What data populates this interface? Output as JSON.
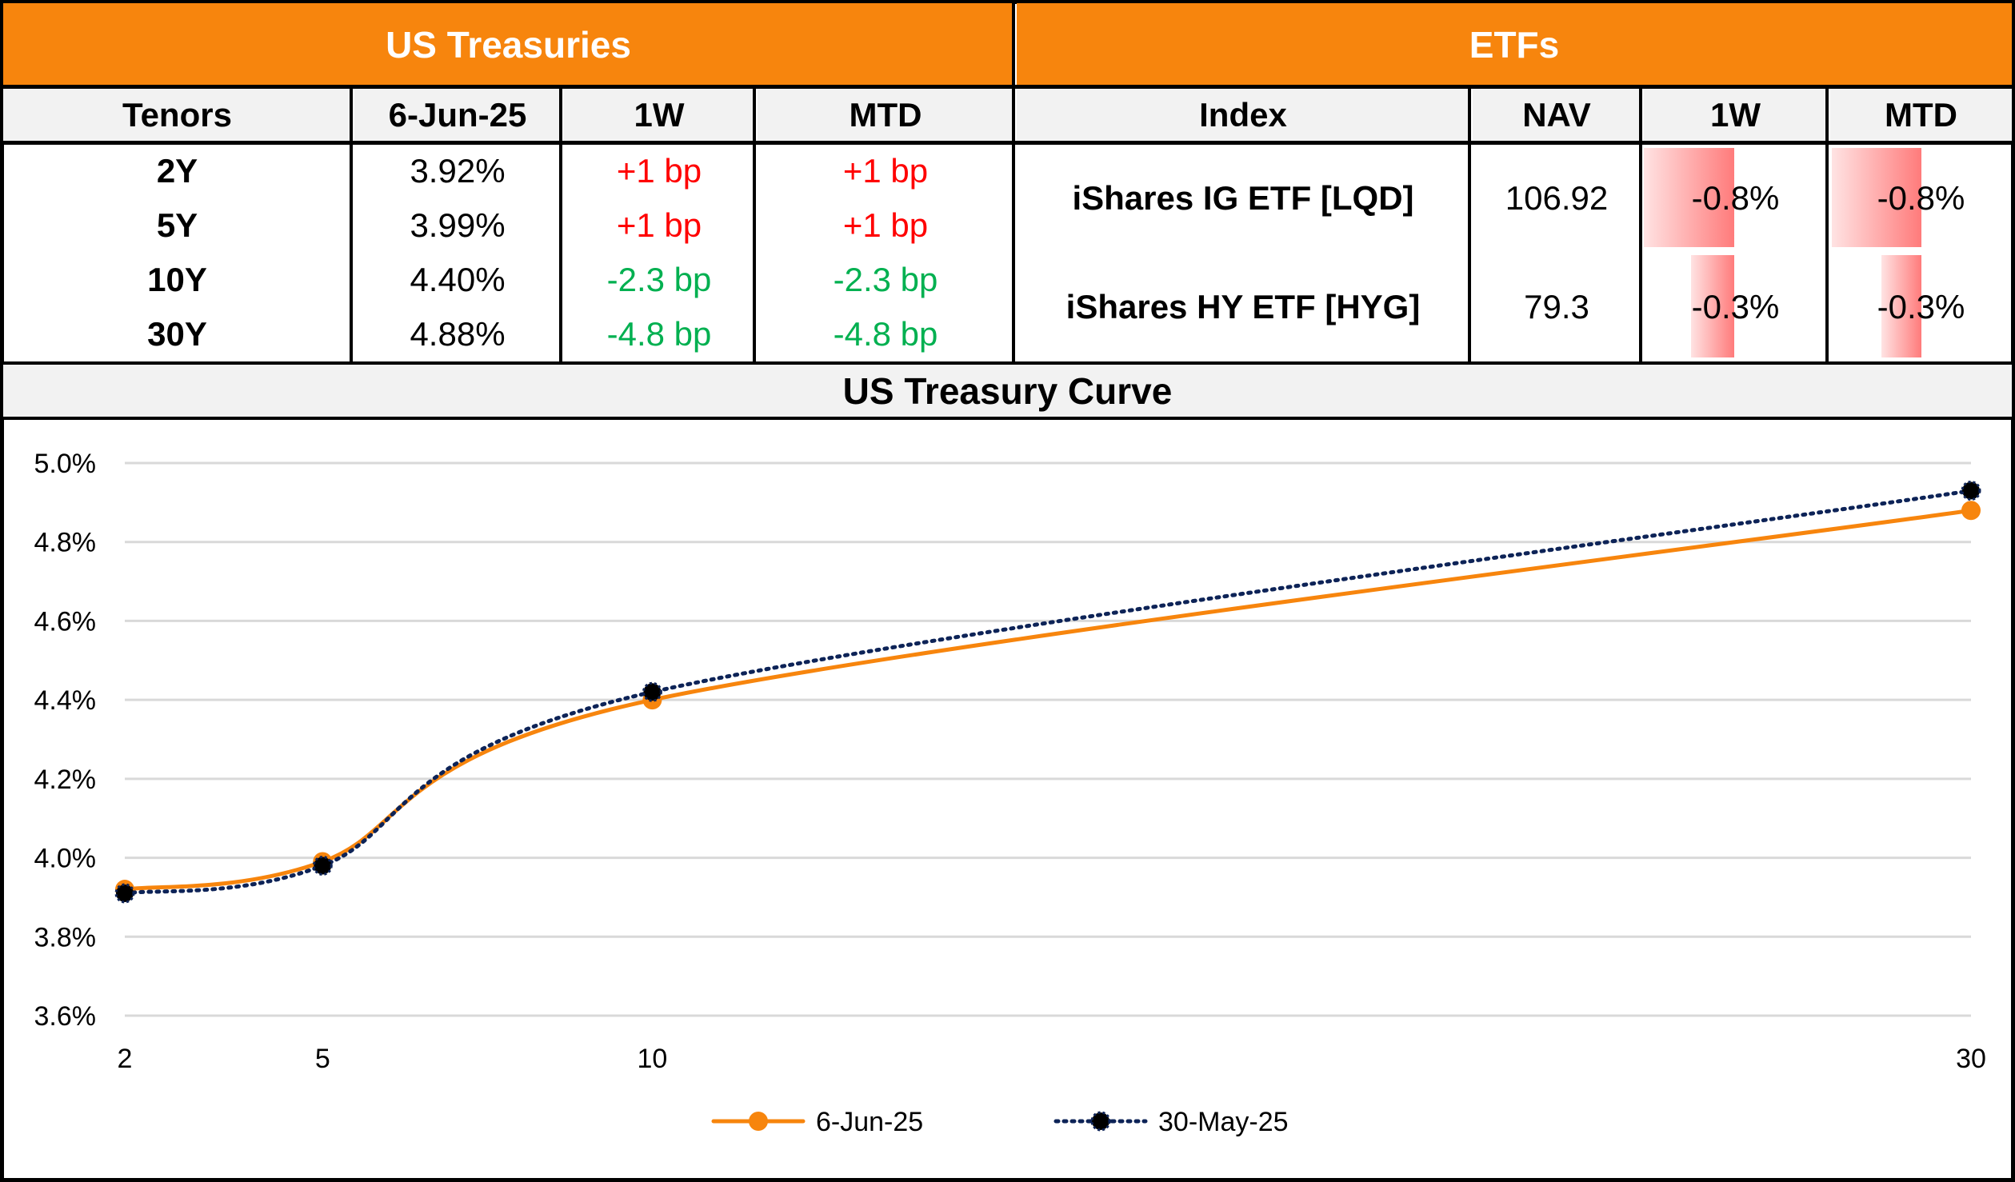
{
  "treasuries": {
    "title": "US Treasuries",
    "columns": [
      "Tenors",
      "6-Jun-25",
      "1W",
      "MTD"
    ],
    "rows": [
      {
        "tenor": "2Y",
        "yield": "3.92%",
        "w1": "+1 bp",
        "mtd": "+1 bp",
        "direction": "up"
      },
      {
        "tenor": "5Y",
        "yield": "3.99%",
        "w1": "+1 bp",
        "mtd": "+1 bp",
        "direction": "up"
      },
      {
        "tenor": "10Y",
        "yield": "4.40%",
        "w1": "-2.3 bp",
        "mtd": "-2.3 bp",
        "direction": "down"
      },
      {
        "tenor": "30Y",
        "yield": "4.88%",
        "w1": "-4.8 bp",
        "mtd": "-4.8 bp",
        "direction": "down"
      }
    ]
  },
  "etfs": {
    "title": "ETFs",
    "columns": [
      "Index",
      "NAV",
      "1W",
      "MTD"
    ],
    "rows": [
      {
        "index": "iShares IG ETF [LQD]",
        "nav": "106.92",
        "w1": "-0.8%",
        "mtd": "-0.8%",
        "w1_value": -0.8,
        "mtd_value": -0.8
      },
      {
        "index": "iShares HY ETF [HYG]",
        "nav": "79.3",
        "w1": "-0.3%",
        "mtd": "-0.3%",
        "w1_value": -0.3,
        "mtd_value": -0.3
      }
    ]
  },
  "colors": {
    "header_band": "#F7850D",
    "header_row": "#F2F2F2",
    "positive_change": "#FF0000",
    "negative_change": "#00B050",
    "series_current": "#F7850D",
    "series_previous": "#0D2357",
    "gridline": "#D9D9D9"
  },
  "chart_data": {
    "type": "line",
    "title": "US Treasury Curve",
    "xlabel": "",
    "ylabel": "",
    "x": [
      2,
      5,
      10,
      30
    ],
    "x_ticks": [
      "2",
      "5",
      "10",
      "30"
    ],
    "xlim": [
      2,
      30
    ],
    "ylim": [
      3.6,
      5.0
    ],
    "y_ticks": [
      "3.6%",
      "3.8%",
      "4.0%",
      "4.2%",
      "4.4%",
      "4.6%",
      "4.8%",
      "5.0%"
    ],
    "y_tick_values": [
      3.6,
      3.8,
      4.0,
      4.2,
      4.4,
      4.6,
      4.8,
      5.0
    ],
    "grid": true,
    "legend_position": "bottom",
    "series": [
      {
        "name": "6-Jun-25",
        "values": [
          3.92,
          3.99,
          4.4,
          4.88
        ],
        "style": "solid",
        "marker": "circle"
      },
      {
        "name": "30-May-25",
        "values": [
          3.91,
          3.98,
          4.42,
          4.93
        ],
        "style": "dotted",
        "marker": "circle"
      }
    ]
  }
}
